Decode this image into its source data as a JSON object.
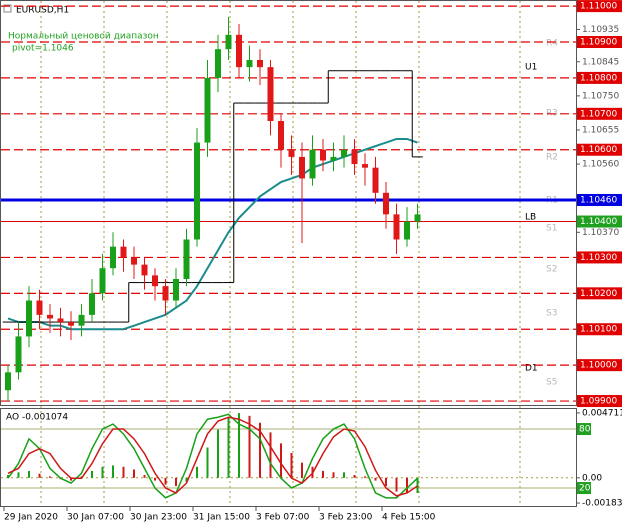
{
  "chart_data": [
    {
      "type": "candlestick",
      "title": "EURUSD,H1",
      "subtitle": "Нормальный ценовой диапазон",
      "annotation": "pivot=1.1046",
      "categories": [
        null,
        null,
        "29 Jan 2020",
        null,
        null,
        null,
        null,
        null,
        "30 Jan 07:00",
        null,
        null,
        null,
        null,
        null,
        "30 Jan 23:00",
        null,
        null,
        null,
        null,
        null,
        "31 Jan 15:00",
        null,
        null,
        null,
        null,
        null,
        "3 Feb 07:00",
        null,
        null,
        null,
        null,
        null,
        "3 Feb 23:00",
        null,
        null,
        null,
        null,
        null,
        "4 Feb 15:00",
        null
      ],
      "open": [
        1.0993,
        1.0998,
        1.1008,
        1.1018,
        1.1014,
        1.1013,
        1.1012,
        1.1011,
        1.1014,
        1.102,
        1.1027,
        1.1033,
        1.103,
        1.1028,
        1.1025,
        1.1022,
        1.1018,
        1.1024,
        1.1035,
        1.1062,
        1.108,
        1.1088,
        1.1092,
        1.1083,
        1.1085,
        1.1083,
        1.1068,
        1.106,
        1.1058,
        1.1052,
        1.106,
        1.1057,
        1.1058,
        1.106,
        1.1056,
        1.1055,
        1.1048,
        1.1042,
        1.1035,
        1.104
      ],
      "high": [
        1.1,
        1.1012,
        1.1022,
        1.1021,
        1.1017,
        1.1016,
        1.1015,
        1.1017,
        1.1024,
        1.1031,
        1.1037,
        1.1035,
        1.1033,
        1.103,
        1.1027,
        1.1024,
        1.1027,
        1.1038,
        1.1066,
        1.1085,
        1.1092,
        1.1097,
        1.1095,
        1.1089,
        1.1088,
        1.1085,
        1.107,
        1.1064,
        1.1062,
        1.1064,
        1.1063,
        1.1062,
        1.1064,
        1.1063,
        1.1059,
        1.1058,
        1.1051,
        1.1045,
        1.1044,
        1.1045
      ],
      "low": [
        1.099,
        1.0996,
        1.1005,
        1.101,
        1.1009,
        1.1008,
        1.1007,
        1.1008,
        1.1012,
        1.1018,
        1.1025,
        1.1026,
        1.1024,
        1.1021,
        1.1018,
        1.1014,
        1.1016,
        1.1022,
        1.1033,
        1.1058,
        1.1076,
        1.1085,
        1.108,
        1.1079,
        1.1078,
        1.1064,
        1.1055,
        1.1053,
        1.1034,
        1.105,
        1.1054,
        1.1054,
        1.1055,
        1.1053,
        1.105,
        1.1045,
        1.1038,
        1.1031,
        1.1033,
        1.1038
      ],
      "close": [
        1.0998,
        1.1008,
        1.1018,
        1.1014,
        1.1013,
        1.1012,
        1.1011,
        1.1014,
        1.102,
        1.1027,
        1.1033,
        1.103,
        1.1028,
        1.1025,
        1.1022,
        1.1018,
        1.1024,
        1.1035,
        1.1062,
        1.108,
        1.1088,
        1.1092,
        1.1083,
        1.1085,
        1.1083,
        1.1068,
        1.106,
        1.1058,
        1.1052,
        1.106,
        1.1057,
        1.1058,
        1.106,
        1.1056,
        1.1055,
        1.1048,
        1.1042,
        1.1035,
        1.104,
        1.1042
      ],
      "up_color": "#18a018",
      "down_color": "#e01818",
      "lines": [
        {
          "color": "#1a8c8c",
          "style": "curve",
          "values": [
            1.1013,
            1.1012,
            1.1012,
            1.1012,
            1.1011,
            1.1011,
            1.101,
            1.101,
            1.101,
            1.101,
            1.101,
            1.101,
            1.1011,
            1.1012,
            1.1013,
            1.1014,
            1.1016,
            1.1018,
            1.1022,
            1.1027,
            1.1032,
            1.1037,
            1.1041,
            1.1044,
            1.1047,
            1.1049,
            1.1051,
            1.1052,
            1.1053,
            1.1055,
            1.1056,
            1.1057,
            1.1058,
            1.1059,
            1.106,
            1.1061,
            1.1062,
            1.1063,
            1.1063,
            1.1062
          ]
        },
        {
          "color": "#000000",
          "style": "step",
          "values": [
            1.1012,
            1.1012,
            1.1012,
            1.1012,
            1.1012,
            1.1012,
            1.1012,
            1.1012,
            1.1012,
            1.1012,
            1.1012,
            1.1012,
            1.1023,
            1.1023,
            1.1023,
            1.1023,
            1.1023,
            1.1023,
            1.1023,
            1.1023,
            1.1023,
            1.1023,
            1.1073,
            1.1073,
            1.1073,
            1.1073,
            1.1073,
            1.1073,
            1.1073,
            1.1073,
            1.1073,
            1.1082,
            1.1082,
            1.1082,
            1.1082,
            1.1082,
            1.1082,
            1.1082,
            1.1082,
            1.1058
          ]
        }
      ],
      "ylim": [
        1.09889,
        1.11017
      ],
      "yticks": [
        {
          "value": 1.10935,
          "label": "1.10935"
        },
        {
          "value": 1.10845,
          "label": "1.10845"
        },
        {
          "value": 1.1075,
          "label": "1.10750"
        },
        {
          "value": 1.10655,
          "label": "1.10655"
        },
        {
          "value": 1.1056,
          "label": "1.10560"
        },
        {
          "value": 1.1037,
          "label": "1.10370"
        }
      ],
      "levels": [
        {
          "value": 1.11,
          "label": "1.11000",
          "color": "#e00000",
          "style": "dashed"
        },
        {
          "value": 1.109,
          "label": "1.10900",
          "color": "#e00000",
          "style": "dashed"
        },
        {
          "value": 1.108,
          "label": "1.10800",
          "color": "#e00000",
          "style": "dashed"
        },
        {
          "value": 1.107,
          "label": "1.10700",
          "color": "#e00000",
          "style": "dashed"
        },
        {
          "value": 1.106,
          "label": "1.10600",
          "color": "#e00000",
          "style": "dashed"
        },
        {
          "value": 1.1046,
          "label": "1.10460",
          "color": "#0000e0",
          "style": "solid"
        },
        {
          "value": 1.104,
          "label": "1.10400",
          "color": "#20a020",
          "style": "thin"
        },
        {
          "value": 1.103,
          "label": "1.10300",
          "color": "#e00000",
          "style": "dashed"
        },
        {
          "value": 1.102,
          "label": "1.10200",
          "color": "#e00000",
          "style": "dashed"
        },
        {
          "value": 1.101,
          "label": "1.10100",
          "color": "#e00000",
          "style": "dashed"
        },
        {
          "value": 1.1,
          "label": "1.10000",
          "color": "#e00000",
          "style": "dashed"
        },
        {
          "value": 1.099,
          "label": "1.09900",
          "color": "#e00000",
          "style": "dashed"
        }
      ],
      "pivot_labels": [
        "R4",
        "R3",
        "R2",
        "R1",
        "S1",
        "S2",
        "S3",
        "S5"
      ],
      "band_labels": [
        "U1",
        "LB",
        "D1"
      ]
    },
    {
      "type": "bar",
      "title": "AO -0.001074",
      "values": [
        0.0002,
        0.0004,
        0.0005,
        0.0003,
        0.0001,
        -0.0001,
        -0.0002,
        0.0001,
        0.0005,
        0.0008,
        0.0009,
        0.0008,
        0.0006,
        0.0002,
        -0.0002,
        -0.0005,
        -0.0006,
        -0.0003,
        0.0008,
        0.0022,
        0.0035,
        0.0044,
        0.0047,
        0.0045,
        0.004,
        0.0033,
        0.0025,
        0.0018,
        0.0011,
        0.0008,
        0.0005,
        0.0004,
        0.0004,
        0.0002,
        0.0001,
        -0.0002,
        -0.0006,
        -0.001,
        -0.0011,
        -0.0011
      ],
      "up_color": "#18a018",
      "down_color": "#d01818",
      "ylim": [
        -0.00212,
        0.00507
      ],
      "yticks": [
        0.004711,
        {
          "value": 0,
          "label": "0.00"
        },
        -0.001832
      ],
      "series": [
        {
          "color": "#18a018",
          "axis": "y2",
          "values": [
            30,
            45,
            70,
            60,
            40,
            30,
            25,
            35,
            60,
            80,
            85,
            75,
            60,
            40,
            20,
            10,
            15,
            40,
            75,
            90,
            92,
            95,
            85,
            80,
            70,
            45,
            30,
            20,
            25,
            50,
            70,
            80,
            85,
            70,
            40,
            15,
            10,
            10,
            20,
            30
          ]
        },
        {
          "color": "#d01818",
          "axis": "y2",
          "values": [
            35,
            40,
            55,
            60,
            55,
            40,
            30,
            30,
            45,
            65,
            80,
            80,
            70,
            55,
            35,
            20,
            15,
            25,
            50,
            75,
            88,
            92,
            90,
            85,
            78,
            62,
            45,
            30,
            25,
            35,
            55,
            72,
            80,
            78,
            62,
            38,
            20,
            12,
            15,
            22
          ]
        }
      ],
      "y2lim": [
        0.7,
        101.4
      ],
      "y2ticks": [
        80,
        20
      ],
      "y2tick_color": "#20a020"
    }
  ]
}
